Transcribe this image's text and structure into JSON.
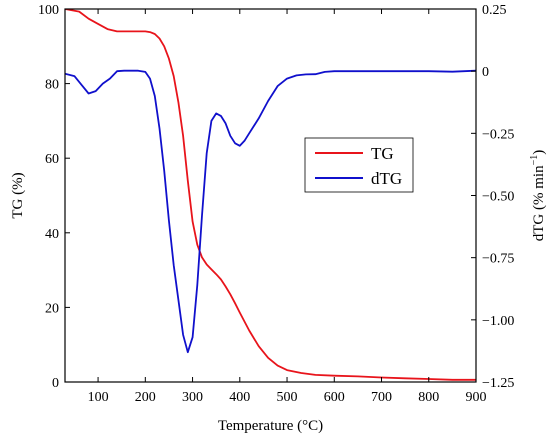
{
  "chart_data": {
    "type": "line",
    "xlabel": "Temperature (°C)",
    "ylabel_left": "TG (%)",
    "ylabel_right_base": "dTG (% min",
    "ylabel_right_sup": "−1",
    "ylabel_right_close": ")",
    "xlim": [
      30,
      900
    ],
    "ylim_left": [
      0,
      100
    ],
    "ylim_right": [
      -1.25,
      0.25
    ],
    "x_ticks": [
      100,
      200,
      300,
      400,
      500,
      600,
      700,
      800,
      900
    ],
    "x_tick_labels": [
      "100",
      "200",
      "300",
      "400",
      "500",
      "600",
      "700",
      "800",
      "900"
    ],
    "y_left_ticks": [
      0,
      20,
      40,
      60,
      80,
      100
    ],
    "y_left_tick_labels": [
      "0",
      "20",
      "40",
      "60",
      "80",
      "100"
    ],
    "y_right_ticks": [
      -1.25,
      -1.0,
      -0.75,
      -0.5,
      -0.25,
      0,
      0.25
    ],
    "y_right_tick_labels": [
      "−1.25",
      "−1.00",
      "−0.75",
      "−0.50",
      "−0.25",
      "0",
      "0.25"
    ],
    "grid": false,
    "legend_position": "center-right",
    "series": [
      {
        "name": "TG",
        "axis": "left",
        "color": "#e8141b",
        "x": [
          30,
          60,
          80,
          100,
          120,
          140,
          160,
          180,
          200,
          210,
          220,
          230,
          240,
          250,
          260,
          270,
          280,
          290,
          300,
          310,
          320,
          330,
          340,
          350,
          360,
          370,
          380,
          390,
          400,
          420,
          440,
          460,
          480,
          500,
          530,
          560,
          600,
          650,
          700,
          750,
          800,
          850,
          900
        ],
        "y": [
          100,
          99.3,
          97.4,
          96.0,
          94.6,
          94.0,
          94.0,
          94.0,
          94.0,
          93.8,
          93.3,
          92.1,
          90.0,
          86.7,
          82.0,
          75.0,
          66.0,
          54.0,
          43.0,
          36.8,
          33.4,
          31.5,
          30.2,
          28.9,
          27.5,
          25.6,
          23.5,
          21.1,
          18.6,
          13.8,
          9.6,
          6.5,
          4.4,
          3.2,
          2.4,
          1.9,
          1.7,
          1.5,
          1.2,
          1.0,
          0.8,
          0.6,
          0.6
        ]
      },
      {
        "name": "dTG",
        "axis": "right",
        "color": "#1010cc",
        "x": [
          30,
          50,
          65,
          80,
          95,
          110,
          125,
          140,
          155,
          170,
          185,
          200,
          210,
          220,
          230,
          240,
          250,
          260,
          270,
          280,
          290,
          300,
          310,
          320,
          330,
          340,
          350,
          360,
          370,
          380,
          390,
          400,
          410,
          420,
          440,
          460,
          480,
          500,
          520,
          540,
          560,
          580,
          600,
          650,
          700,
          750,
          800,
          850,
          900
        ],
        "y": [
          -0.01,
          -0.02,
          -0.055,
          -0.09,
          -0.08,
          -0.05,
          -0.03,
          0.0,
          0.002,
          0.002,
          0.002,
          -0.003,
          -0.03,
          -0.1,
          -0.23,
          -0.4,
          -0.6,
          -0.78,
          -0.92,
          -1.06,
          -1.13,
          -1.07,
          -0.86,
          -0.58,
          -0.33,
          -0.2,
          -0.17,
          -0.18,
          -0.21,
          -0.26,
          -0.29,
          -0.3,
          -0.28,
          -0.25,
          -0.19,
          -0.12,
          -0.06,
          -0.03,
          -0.017,
          -0.013,
          -0.012,
          -0.003,
          0.0,
          0.0,
          0.0,
          0.0,
          0.0,
          -0.002,
          0.002
        ]
      }
    ]
  }
}
